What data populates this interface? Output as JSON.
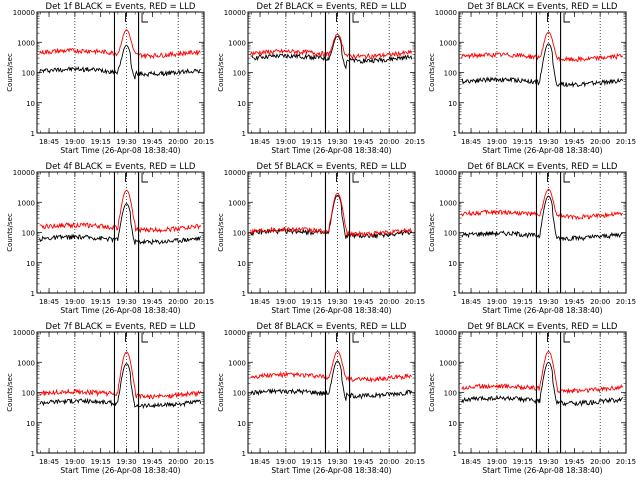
{
  "chart_data": [
    {
      "type": "line",
      "title": "Det 1f BLACK = Events, RED = LLD",
      "ylabel": "Counts/sec",
      "xlabel": "Start Time (26-Apr-08 18:38:40)",
      "yscale": "log",
      "ylim": [
        1,
        10000
      ],
      "xlim": [
        "18:38",
        "20:15"
      ],
      "xticks": [
        "18:45",
        "19:00",
        "19:15",
        "19:30",
        "19:45",
        "20:00",
        "20:15"
      ],
      "yticks": [
        "1",
        "10",
        "100",
        "1000",
        "10000"
      ],
      "series": [
        {
          "name": "Events",
          "color": "#000000",
          "baseline": 110,
          "peak": 800
        },
        {
          "name": "LLD",
          "color": "#ff0000",
          "baseline": 450,
          "peak": 2600
        }
      ]
    },
    {
      "type": "line",
      "title": "Det 2f BLACK = Events, RED = LLD",
      "ylabel": "Counts/sec",
      "xlabel": "Start Time (26-Apr-08 18:38:40)",
      "yscale": "log",
      "ylim": [
        1,
        10000
      ],
      "xlim": [
        "18:38",
        "20:15"
      ],
      "xticks": [
        "18:45",
        "19:00",
        "19:15",
        "19:30",
        "19:45",
        "20:00",
        "20:15"
      ],
      "yticks": [
        "1",
        "10",
        "100",
        "1000",
        "10000"
      ],
      "series": [
        {
          "name": "Events",
          "color": "#000000",
          "baseline": 300,
          "peak": 1600
        },
        {
          "name": "LLD",
          "color": "#ff0000",
          "baseline": 420,
          "peak": 1900
        }
      ]
    },
    {
      "type": "line",
      "title": "Det 3f BLACK = Events, RED = LLD",
      "ylabel": "Counts/sec",
      "xlabel": "Start Time (26-Apr-08 18:38:40)",
      "yscale": "log",
      "ylim": [
        1,
        10000
      ],
      "xlim": [
        "18:38",
        "20:15"
      ],
      "xticks": [
        "18:45",
        "19:00",
        "19:15",
        "19:30",
        "19:45",
        "20:00",
        "20:15"
      ],
      "yticks": [
        "1",
        "10",
        "100",
        "1000",
        "10000"
      ],
      "series": [
        {
          "name": "Events",
          "color": "#000000",
          "baseline": 50,
          "peak": 900
        },
        {
          "name": "LLD",
          "color": "#ff0000",
          "baseline": 330,
          "peak": 2200
        }
      ]
    },
    {
      "type": "line",
      "title": "Det 4f BLACK = Events, RED = LLD",
      "ylabel": "Counts/sec",
      "xlabel": "Start Time (26-Apr-08 18:38:40)",
      "yscale": "log",
      "ylim": [
        1,
        10000
      ],
      "xlim": [
        "18:38",
        "20:15"
      ],
      "xticks": [
        "18:45",
        "19:00",
        "19:15",
        "19:30",
        "19:45",
        "20:00",
        "20:15"
      ],
      "yticks": [
        "1",
        "10",
        "100",
        "1000",
        "10000"
      ],
      "series": [
        {
          "name": "Events",
          "color": "#000000",
          "baseline": 60,
          "peak": 900
        },
        {
          "name": "LLD",
          "color": "#ff0000",
          "baseline": 150,
          "peak": 2500
        }
      ]
    },
    {
      "type": "line",
      "title": "Det 5f BLACK = Events, RED = LLD",
      "ylabel": "Counts/sec",
      "xlabel": "Start Time (26-Apr-08 18:38:40)",
      "yscale": "log",
      "ylim": [
        1,
        10000
      ],
      "xlim": [
        "18:38",
        "20:15"
      ],
      "xticks": [
        "18:45",
        "19:00",
        "19:15",
        "19:30",
        "19:45",
        "20:00",
        "20:15"
      ],
      "yticks": [
        "1",
        "10",
        "100",
        "1000",
        "10000"
      ],
      "series": [
        {
          "name": "Events",
          "color": "#000000",
          "baseline": 95,
          "peak": 1700
        },
        {
          "name": "LLD",
          "color": "#ff0000",
          "baseline": 110,
          "peak": 2000
        }
      ]
    },
    {
      "type": "line",
      "title": "Det 6f BLACK = Events, RED = LLD",
      "ylabel": "Counts/sec",
      "xlabel": "Start Time (26-Apr-08 18:38:40)",
      "yscale": "log",
      "ylim": [
        1,
        10000
      ],
      "xlim": [
        "18:38",
        "20:15"
      ],
      "xticks": [
        "18:45",
        "19:00",
        "19:15",
        "19:30",
        "19:45",
        "20:00",
        "20:15"
      ],
      "yticks": [
        "1",
        "10",
        "100",
        "1000",
        "10000"
      ],
      "series": [
        {
          "name": "Events",
          "color": "#000000",
          "baseline": 80,
          "peak": 1600
        },
        {
          "name": "LLD",
          "color": "#ff0000",
          "baseline": 400,
          "peak": 2700
        }
      ]
    },
    {
      "type": "line",
      "title": "Det 7f BLACK = Events, RED = LLD",
      "ylabel": "Counts/sec",
      "xlabel": "Start Time (26-Apr-08 18:38:40)",
      "yscale": "log",
      "ylim": [
        1,
        10000
      ],
      "xlim": [
        "18:38",
        "20:15"
      ],
      "xticks": [
        "18:45",
        "19:00",
        "19:15",
        "19:30",
        "19:45",
        "20:00",
        "20:15"
      ],
      "yticks": [
        "1",
        "10",
        "100",
        "1000",
        "10000"
      ],
      "series": [
        {
          "name": "Events",
          "color": "#000000",
          "baseline": 45,
          "peak": 900
        },
        {
          "name": "LLD",
          "color": "#ff0000",
          "baseline": 90,
          "peak": 2200
        }
      ]
    },
    {
      "type": "line",
      "title": "Det 8f BLACK = Events, RED = LLD",
      "ylabel": "Counts/sec",
      "xlabel": "Start Time (26-Apr-08 18:38:40)",
      "yscale": "log",
      "ylim": [
        1,
        10000
      ],
      "xlim": [
        "18:38",
        "20:15"
      ],
      "xticks": [
        "18:45",
        "19:00",
        "19:15",
        "19:30",
        "19:45",
        "20:00",
        "20:15"
      ],
      "yticks": [
        "1",
        "10",
        "100",
        "1000",
        "10000"
      ],
      "series": [
        {
          "name": "Events",
          "color": "#000000",
          "baseline": 95,
          "peak": 1100
        },
        {
          "name": "LLD",
          "color": "#ff0000",
          "baseline": 330,
          "peak": 2300
        }
      ]
    },
    {
      "type": "line",
      "title": "Det 9f BLACK = Events, RED = LLD",
      "ylabel": "Counts/sec",
      "xlabel": "Start Time (26-Apr-08 18:38:40)",
      "yscale": "log",
      "ylim": [
        1,
        10000
      ],
      "xlim": [
        "18:38",
        "20:15"
      ],
      "xticks": [
        "18:45",
        "19:00",
        "19:15",
        "19:30",
        "19:45",
        "20:00",
        "20:15"
      ],
      "yticks": [
        "1",
        "10",
        "100",
        "1000",
        "10000"
      ],
      "series": [
        {
          "name": "Events",
          "color": "#000000",
          "baseline": 55,
          "peak": 1000
        },
        {
          "name": "LLD",
          "color": "#ff0000",
          "baseline": 140,
          "peak": 2300
        }
      ]
    }
  ],
  "markers": {
    "dotted_lines": [
      "19:00",
      "19:30",
      "20:00"
    ],
    "solid_lines": [
      "19:23",
      "19:37"
    ],
    "bracket_marks": [
      "19:30",
      "19:39"
    ],
    "peak_time": "19:30"
  }
}
